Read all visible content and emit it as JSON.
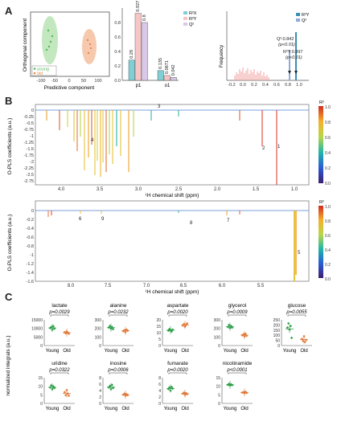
{
  "panels": {
    "a": "A",
    "b": "B",
    "c": "C"
  },
  "panel_a": {
    "score_plot": {
      "xlabel": "Predictive component",
      "ylabel": "Orthogonal component",
      "xticks": [
        "-100",
        "-50",
        "0",
        "50",
        "100"
      ],
      "legend": [
        "young",
        "old"
      ],
      "colors": {
        "young": "#58b85c",
        "old": "#e8894a"
      }
    },
    "bar_chart": {
      "type": "bar",
      "categories": [
        "p1",
        "o1"
      ],
      "series": [
        {
          "name": "R²X",
          "values": [
            0.28,
            0.135
          ],
          "color": "#7fcfd4"
        },
        {
          "name": "R²Y",
          "values": [
            0.927,
            0.0671
          ],
          "color": "#f6c6c6"
        },
        {
          "name": "Q²",
          "values": [
            0.8,
            0.042
          ],
          "color": "#d9c8e8"
        }
      ],
      "value_labels": [
        [
          "0.28",
          "0.927",
          "0.8"
        ],
        [
          "0.135",
          "0.0671",
          "0.042"
        ]
      ],
      "yticks": [
        "0.8",
        "0.6",
        "0.4",
        "0.2",
        "0.0"
      ],
      "ylim": [
        0,
        1.0
      ]
    },
    "perm_plot": {
      "ylabel": "Frequency",
      "xticks": [
        "-0.2",
        "0.0",
        "0.2",
        "0.4",
        "0.6",
        "0.8",
        "1.0"
      ],
      "legend": [
        "R²Y",
        "Q²"
      ],
      "annotation_q2": [
        "Q²:0.842",
        "(p<0.01)"
      ],
      "annotation_r2y": [
        "R²Y:0.997",
        "(p<0.01)"
      ]
    }
  },
  "panel_b": {
    "ylabel": "O-PLS coefficients (a.u.)",
    "xlabel": "¹H chemical shift (ppm)",
    "colorbar_label": "R²",
    "colorbar_ticks": [
      "1.0",
      "0.8",
      "0.6",
      "0.4",
      "0.2",
      "0.0"
    ],
    "top": {
      "yticks": [
        "0",
        "-0.25",
        "-0.5",
        "-0.75",
        "-1",
        "-1.25",
        "-1.5",
        "-1.75",
        "-2",
        "-2.25",
        "-2.5",
        "-2.75"
      ],
      "xticks": [
        "4.0",
        "3.5",
        "3.0",
        "2.5",
        "2.0",
        "1.5",
        "1.0"
      ],
      "peaks": [
        "1",
        "2",
        "3",
        "4"
      ]
    },
    "bottom": {
      "yticks": [
        "0",
        "-0.2",
        "-0.4",
        "-0.6",
        "-0.8",
        "-1",
        "-1.2",
        "-1.4",
        "-1.6"
      ],
      "xticks": [
        "8.0",
        "7.5",
        "7.0",
        "6.5",
        "6.0",
        "5.5"
      ],
      "peaks": [
        "5",
        "6",
        "7",
        "8",
        "9"
      ]
    }
  },
  "panel_c": {
    "ylabel": "normalized integrals (a.u.)",
    "groups": [
      "Young",
      "Old"
    ],
    "colors": {
      "young": "#2e9e4a",
      "old": "#e07a3a"
    },
    "metabolites": [
      {
        "name": "lactate",
        "p": "p=0.0029",
        "yticks": [
          "15000",
          "10000",
          "5000",
          "0"
        ]
      },
      {
        "name": "alanine",
        "p": "p=0.0232",
        "yticks": [
          "300",
          "200",
          "100",
          "0"
        ]
      },
      {
        "name": "aspartate",
        "p": "p=0.0020",
        "yticks": [
          "20",
          "15",
          "10",
          "5",
          "0"
        ]
      },
      {
        "name": "glycerol",
        "p": "p=0.0009",
        "yticks": [
          "300",
          "200",
          "100",
          "0"
        ]
      },
      {
        "name": "glucose",
        "p": "p=0.0055",
        "yticks": [
          "250",
          "200",
          "150",
          "100",
          "50",
          "0"
        ]
      },
      {
        "name": "uridine",
        "p": "p=0.0322",
        "yticks": [
          "15",
          "10",
          "5",
          "0"
        ]
      },
      {
        "name": "inosine",
        "p": "p=0.0006",
        "yticks": [
          "8",
          "6",
          "4",
          "2",
          "0"
        ]
      },
      {
        "name": "fumarate",
        "p": "p=0.0020",
        "yticks": [
          "8",
          "6",
          "4",
          "2",
          "0"
        ]
      },
      {
        "name": "nicotinamide",
        "p": "p<0.0001",
        "yticks": [
          "15",
          "10",
          "5",
          "0"
        ]
      }
    ]
  }
}
